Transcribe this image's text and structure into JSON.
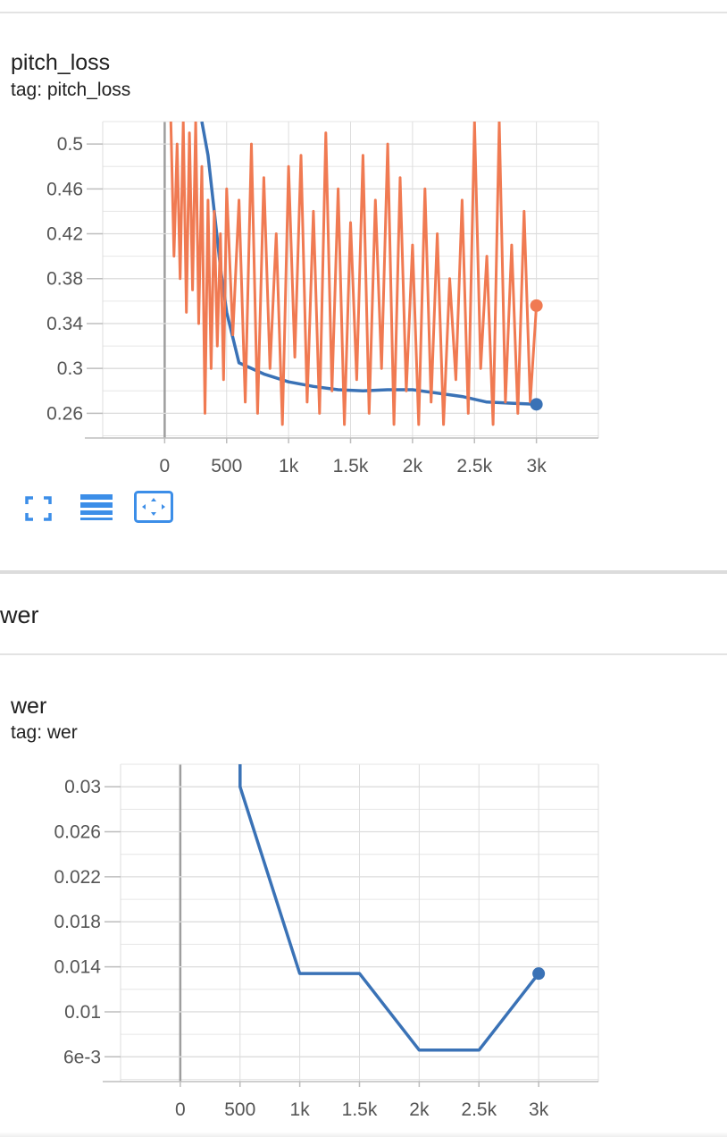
{
  "cards": [
    {
      "title": "pitch_loss",
      "tag": "tag: pitch_loss"
    },
    {
      "title": "wer",
      "tag": "tag: wer"
    }
  ],
  "section": {
    "title": "wer"
  },
  "toolbar": {
    "icons": [
      "fullscreen-icon",
      "log-scale-lines-icon",
      "fit-domain-icon"
    ]
  },
  "colors": {
    "smoothed": "#3a72b6",
    "raw": "#f07a52",
    "grid": "#dddddd",
    "toolbar": "#3c8ee8"
  },
  "chart_data": [
    {
      "type": "line",
      "xticks": [
        "0",
        "500",
        "1k",
        "1.5k",
        "2k",
        "2.5k",
        "3k"
      ],
      "yticks": [
        "0.26",
        "0.3",
        "0.34",
        "0.38",
        "0.42",
        "0.46",
        "0.5"
      ],
      "xlim": [
        -500,
        3500
      ],
      "ylim": [
        0.238,
        0.52
      ],
      "grid": true,
      "series": [
        {
          "role": "smoothed",
          "x": [
            300,
            350,
            400,
            450,
            500,
            600,
            800,
            1000,
            1200,
            1400,
            1600,
            1800,
            2000,
            2200,
            2400,
            2600,
            2800,
            3000
          ],
          "y": [
            0.52,
            0.49,
            0.44,
            0.39,
            0.35,
            0.305,
            0.295,
            0.288,
            0.284,
            0.281,
            0.28,
            0.281,
            0.281,
            0.278,
            0.275,
            0.27,
            0.269,
            0.268
          ]
        },
        {
          "role": "raw",
          "x": [
            50,
            75,
            100,
            125,
            150,
            175,
            200,
            225,
            250,
            275,
            300,
            325,
            350,
            375,
            400,
            425,
            450,
            475,
            500,
            550,
            600,
            650,
            700,
            750,
            800,
            850,
            900,
            950,
            1000,
            1050,
            1100,
            1150,
            1200,
            1250,
            1300,
            1350,
            1400,
            1450,
            1500,
            1550,
            1600,
            1650,
            1700,
            1750,
            1800,
            1850,
            1900,
            1950,
            2000,
            2050,
            2100,
            2150,
            2200,
            2250,
            2300,
            2350,
            2400,
            2450,
            2500,
            2550,
            2600,
            2650,
            2700,
            2750,
            2800,
            2850,
            2900,
            2950,
            3000
          ],
          "y": [
            0.52,
            0.4,
            0.5,
            0.38,
            0.52,
            0.35,
            0.51,
            0.37,
            0.52,
            0.34,
            0.48,
            0.26,
            0.45,
            0.3,
            0.44,
            0.32,
            0.42,
            0.29,
            0.46,
            0.33,
            0.45,
            0.27,
            0.5,
            0.26,
            0.47,
            0.3,
            0.42,
            0.25,
            0.48,
            0.31,
            0.49,
            0.27,
            0.44,
            0.26,
            0.51,
            0.28,
            0.46,
            0.25,
            0.43,
            0.29,
            0.49,
            0.26,
            0.45,
            0.3,
            0.5,
            0.25,
            0.47,
            0.28,
            0.41,
            0.25,
            0.46,
            0.27,
            0.42,
            0.25,
            0.38,
            0.29,
            0.45,
            0.26,
            0.52,
            0.3,
            0.4,
            0.25,
            0.52,
            0.27,
            0.41,
            0.26,
            0.44,
            0.27,
            0.356
          ]
        }
      ]
    },
    {
      "type": "line",
      "xticks": [
        "0",
        "500",
        "1k",
        "1.5k",
        "2k",
        "2.5k",
        "3k"
      ],
      "yticks": [
        "6e-3",
        "0.01",
        "0.014",
        "0.018",
        "0.022",
        "0.026",
        "0.03"
      ],
      "xlim": [
        -500,
        3500
      ],
      "ylim": [
        0.0038,
        0.032
      ],
      "grid": true,
      "series": [
        {
          "role": "smoothed",
          "x": [
            500,
            500,
            1000,
            1500,
            2000,
            2500,
            3000
          ],
          "y": [
            0.032,
            0.03,
            0.0134,
            0.0134,
            0.0066,
            0.0066,
            0.0134
          ]
        }
      ]
    }
  ]
}
